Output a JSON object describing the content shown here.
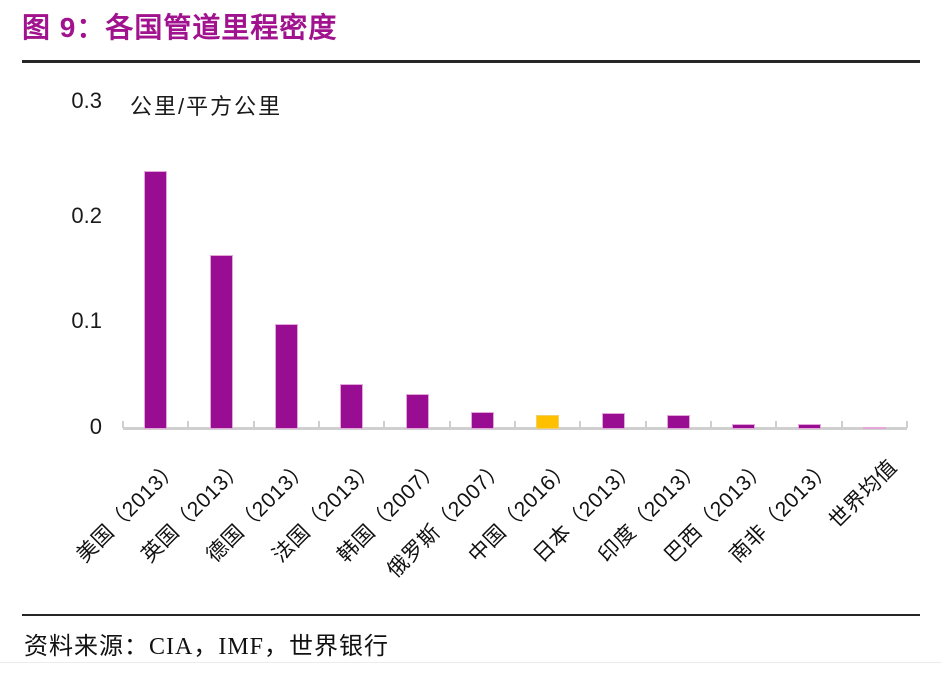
{
  "figure": {
    "title": "图 9：各国管道里程密度",
    "source": "资料来源：CIA，IMF，世界银行"
  },
  "chart_data": {
    "type": "bar",
    "title": "图 9：各国管道里程密度",
    "ylabel": "公里/平方公里",
    "xlabel": "",
    "ylim": [
      0,
      0.3
    ],
    "yticks": [
      "0",
      "0.1",
      "0.2",
      "0.3"
    ],
    "grid": false,
    "legend_position": "none",
    "categories": [
      "美国（2013）",
      "英国（2013）",
      "德国（2013）",
      "法国（2013）",
      "韩国（2007）",
      "俄罗斯（2007）",
      "中国（2016）",
      "日本（2013）",
      "印度（2013）",
      "巴西（2013）",
      "南非（2013）",
      "世界均值"
    ],
    "values": [
      0.245,
      0.165,
      0.1,
      0.043,
      0.033,
      0.016,
      0.013,
      0.015,
      0.013,
      0.005,
      0.005,
      0.002
    ],
    "bar_color": "#990D93",
    "bar_edge_color": "#E3A7DC",
    "highlight": {
      "index": 6,
      "category": "中国（2016）",
      "color": "#FFC000",
      "edge_color": "#F2CE6B"
    },
    "axis_color": "#CFCFCF",
    "title_color": "#A1128E"
  }
}
